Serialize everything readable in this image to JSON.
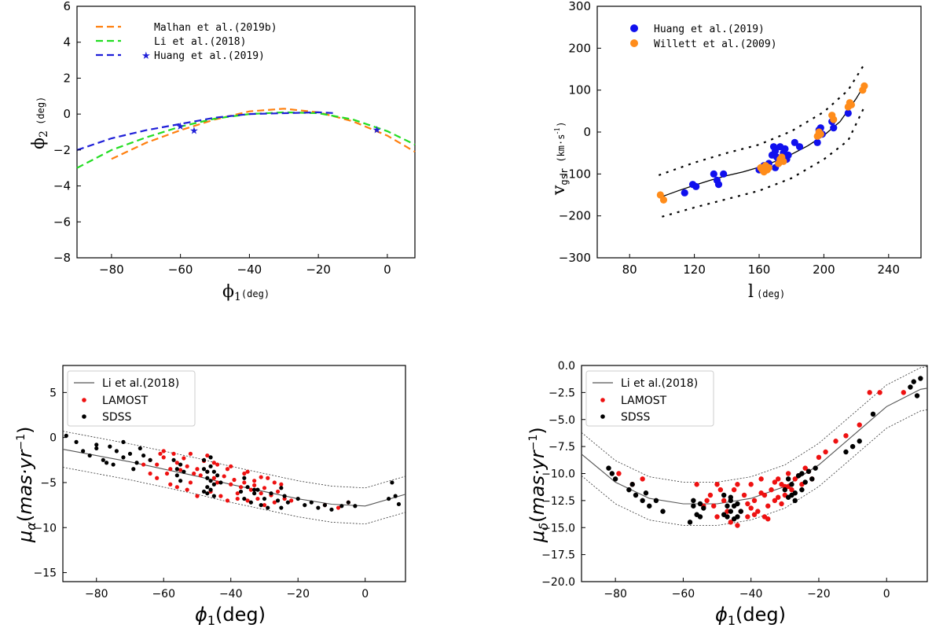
{
  "chart_data": [
    {
      "type": "line",
      "title": "",
      "xlabel": "ϕ1(deg)",
      "ylabel": "ϕ2 (deg)",
      "xlim": [
        -90,
        8
      ],
      "ylim": [
        -8,
        6
      ],
      "xticks": [
        -80,
        -60,
        -40,
        -20,
        0
      ],
      "yticks": [
        -8,
        -6,
        -4,
        -2,
        0,
        2,
        4,
        6
      ],
      "legend": "top-left",
      "series": [
        {
          "name": "Malhan et al.(2019b)",
          "color": "#ff7f0e",
          "style": "dashed",
          "x": [
            -80,
            -70,
            -60,
            -50,
            -40,
            -30,
            -20,
            -10,
            0,
            8
          ],
          "y": [
            -2.5,
            -1.6,
            -0.9,
            -0.3,
            0.15,
            0.3,
            0.1,
            -0.4,
            -1.2,
            -2.1
          ]
        },
        {
          "name": "Li et al.(2018)",
          "color": "#22dd22",
          "style": "dashed",
          "x": [
            -90,
            -80,
            -70,
            -60,
            -50,
            -40,
            -30,
            -20,
            -10,
            0,
            8
          ],
          "y": [
            -3.0,
            -2.0,
            -1.3,
            -0.7,
            -0.25,
            0.0,
            0.1,
            0.05,
            -0.3,
            -0.95,
            -1.7
          ]
        },
        {
          "name": "Huang et al.(2019)",
          "color": "#1f1fd8",
          "style": "dashed",
          "x": [
            -90,
            -80,
            -70,
            -60,
            -50,
            -40,
            -30,
            -20,
            -15
          ],
          "y": [
            -2.0,
            -1.35,
            -0.9,
            -0.55,
            -0.2,
            0.0,
            0.05,
            0.1,
            0.05
          ]
        }
      ],
      "markers": {
        "name": "Huang et al.(2019)",
        "color": "#1f1fd8",
        "symbol": "star",
        "x": [
          -60,
          -56,
          -3
        ],
        "y": [
          -0.65,
          -0.9,
          -0.85
        ]
      }
    },
    {
      "type": "scatter",
      "xlabel": "l (deg)",
      "ylabel": "vgsr (km·s⁻¹)",
      "xlim": [
        60,
        260
      ],
      "ylim": [
        -300,
        300
      ],
      "xticks": [
        80,
        120,
        160,
        200,
        240
      ],
      "yticks": [
        -300,
        -200,
        -100,
        0,
        100,
        200,
        300
      ],
      "legend": "top-left",
      "fit_line": {
        "x": [
          98,
          110,
          120,
          130,
          140,
          150,
          160,
          170,
          180,
          190,
          200,
          210,
          220,
          225
        ],
        "y": [
          -157,
          -140,
          -127,
          -115,
          -104,
          -95,
          -84,
          -70,
          -53,
          -33,
          -8,
          25,
          80,
          112
        ]
      },
      "upper_bound": {
        "x": [
          98,
          120,
          140,
          160,
          180,
          200,
          215,
          225
        ],
        "y": [
          -103,
          -73,
          -50,
          -30,
          2,
          48,
          100,
          162
        ]
      },
      "lower_bound": {
        "x": [
          100,
          120,
          140,
          160,
          180,
          200,
          215,
          225
        ],
        "y": [
          -202,
          -180,
          -160,
          -140,
          -110,
          -65,
          -20,
          60
        ]
      },
      "series": [
        {
          "name": "Huang et al.(2019)",
          "color": "#1010ee",
          "x": [
            114,
            119,
            121,
            132,
            134,
            135,
            138,
            160,
            163,
            166,
            168,
            169,
            170,
            170,
            171,
            172,
            173,
            175,
            176,
            177,
            178,
            182,
            185,
            196,
            197,
            198,
            199,
            205,
            206,
            215
          ],
          "y": [
            -145,
            -125,
            -130,
            -100,
            -115,
            -125,
            -100,
            -90,
            -80,
            -75,
            -55,
            -35,
            -45,
            -85,
            -60,
            -70,
            -35,
            -50,
            -40,
            -65,
            -55,
            -25,
            -35,
            -25,
            5,
            10,
            -5,
            25,
            10,
            45
          ]
        },
        {
          "name": "Willett et al.(2009)",
          "color": "#ff8c1a",
          "x": [
            99,
            101,
            161,
            162,
            163,
            164,
            165,
            166,
            172,
            173,
            174,
            175,
            196,
            197,
            198,
            205,
            206,
            215,
            216,
            217,
            224,
            225
          ],
          "y": [
            -150,
            -162,
            -85,
            -90,
            -95,
            -80,
            -90,
            -85,
            -75,
            -65,
            -60,
            -70,
            -10,
            0,
            -5,
            40,
            30,
            60,
            70,
            65,
            100,
            110
          ]
        }
      ]
    },
    {
      "type": "scatter",
      "xlabel": "ϕ1(deg)",
      "ylabel": "μα(mas·yr⁻¹)",
      "xlim": [
        -90,
        12
      ],
      "ylim": [
        -16,
        8
      ],
      "xticks": [
        -80,
        -60,
        -40,
        -20,
        0
      ],
      "yticks": [
        -15,
        -10,
        -5,
        0,
        5
      ],
      "legend": "top-left",
      "fit_line": {
        "x": [
          -90,
          -80,
          -70,
          -60,
          -50,
          -40,
          -30,
          -20,
          -10,
          0,
          12
        ],
        "y": [
          -1.3,
          -2.0,
          -2.7,
          -3.5,
          -4.3,
          -5.2,
          -6.0,
          -6.8,
          -7.4,
          -7.6,
          -6.3
        ]
      },
      "upper_bound": {
        "x": [
          -90,
          -80,
          -70,
          -60,
          -50,
          -40,
          -30,
          -20,
          -10,
          0,
          12
        ],
        "y": [
          0.7,
          0.0,
          -0.7,
          -1.5,
          -2.3,
          -3.2,
          -4.0,
          -4.8,
          -5.4,
          -5.6,
          -4.3
        ]
      },
      "lower_bound": {
        "x": [
          -90,
          -80,
          -70,
          -60,
          -50,
          -40,
          -30,
          -20,
          -10,
          0,
          12
        ],
        "y": [
          -3.3,
          -4.0,
          -4.7,
          -5.5,
          -6.3,
          -7.2,
          -8.0,
          -8.8,
          -9.4,
          -9.6,
          -8.3
        ]
      },
      "series": [
        {
          "name": "Li et al.(2018)",
          "color": "#555555",
          "kind": "line"
        },
        {
          "name": "LAMOST",
          "color": "#ee1111",
          "x": [
            -64,
            -62,
            -60,
            -58,
            -56,
            -55,
            -53,
            -51,
            -50,
            -49,
            -47,
            -45,
            -44,
            -42,
            -40,
            -39,
            -37,
            -36,
            -34,
            -33,
            -31,
            -30,
            -28,
            -26,
            -24,
            -22,
            -62,
            -59,
            -57,
            -54,
            -52,
            -48,
            -46,
            -43,
            -41,
            -38,
            -35,
            -32,
            -29,
            -27,
            -25,
            -60,
            -56,
            -50,
            -45,
            -40,
            -35,
            -30,
            -12,
            -8,
            -5,
            -66,
            -61,
            -53,
            -47,
            -41,
            -36,
            -33,
            -64,
            -58,
            -52,
            -44,
            -38,
            -31,
            -27
          ],
          "y": [
            -2.5,
            -3.0,
            -2.2,
            -3.5,
            -2.8,
            -3.6,
            -3.2,
            -4.0,
            -3.5,
            -4.2,
            -3.8,
            -4.5,
            -5.0,
            -4.3,
            -5.2,
            -4.7,
            -5.5,
            -5.0,
            -5.8,
            -5.3,
            -6.2,
            -5.6,
            -6.4,
            -6.0,
            -6.8,
            -7.0,
            -4.5,
            -4.0,
            -1.8,
            -2.3,
            -5.0,
            -2.6,
            -6.0,
            -6.5,
            -3.5,
            -6.2,
            -3.8,
            -6.8,
            -4.5,
            -7.2,
            -5.2,
            -1.5,
            -5.5,
            -6.5,
            -2.8,
            -3.2,
            -7.0,
            -7.5,
            -7.5,
            -7.8,
            -7.2,
            -3.0,
            -1.8,
            -5.8,
            -2.0,
            -7.0,
            -4.0,
            -4.8,
            -4.0,
            -5.2,
            -1.8,
            -3.0,
            -6.8,
            -4.4,
            -5.0
          ]
        },
        {
          "name": "SDSS",
          "color": "#000000",
          "x": [
            -89,
            -86,
            -84,
            -82,
            -80,
            -78,
            -76,
            -75,
            -74,
            -72,
            -70,
            -69,
            -68,
            -66,
            -64,
            -57,
            -56,
            -56,
            -55,
            -55,
            -54,
            -48,
            -48,
            -47,
            -47,
            -47,
            -46,
            -46,
            -46,
            -45,
            -45,
            -44,
            -43,
            -37,
            -36,
            -35,
            -34,
            -33,
            -32,
            -31,
            -30,
            -28,
            -26,
            -25,
            -24,
            -23,
            -20,
            -18,
            -16,
            -14,
            -12,
            -10,
            -7,
            -5,
            -3,
            7,
            8,
            9,
            10,
            -80,
            -77,
            -72,
            -67,
            -48,
            -46,
            -47,
            -45,
            -36,
            -33,
            -29,
            -25
          ],
          "y": [
            0.2,
            -0.5,
            -1.5,
            -2.0,
            -0.8,
            -2.5,
            -1.0,
            -3.0,
            -1.5,
            -2.2,
            -1.8,
            -3.5,
            -2.8,
            -2.0,
            -2.5,
            -2.5,
            -3.5,
            -4.2,
            -3.0,
            -4.8,
            -3.8,
            -2.5,
            -3.5,
            -4.5,
            -5.5,
            -6.2,
            -3.2,
            -4.8,
            -5.8,
            -3.8,
            -5.2,
            -4.2,
            -5.0,
            -6.0,
            -6.8,
            -5.5,
            -7.2,
            -6.2,
            -5.8,
            -7.5,
            -6.8,
            -6.2,
            -7.0,
            -7.8,
            -6.5,
            -7.2,
            -6.8,
            -7.5,
            -7.2,
            -7.8,
            -7.5,
            -8.0,
            -7.6,
            -7.2,
            -7.6,
            -6.8,
            -5.0,
            -6.5,
            -7.4,
            -1.2,
            -2.8,
            -0.5,
            -1.2,
            -6.0,
            -2.2,
            -3.8,
            -6.5,
            -4.5,
            -5.8,
            -7.8,
            -5.6
          ]
        }
      ]
    },
    {
      "type": "scatter",
      "xlabel": "ϕ1(deg)",
      "ylabel": "μδ(mas·yr⁻¹)",
      "xlim": [
        -90,
        12
      ],
      "ylim": [
        -20,
        0
      ],
      "xticks": [
        -80,
        -60,
        -40,
        -20,
        0
      ],
      "yticks": [
        -20.0,
        -17.5,
        -15.0,
        -12.5,
        -10.0,
        -7.5,
        -5.0,
        -2.5,
        0.0
      ],
      "legend": "top-left",
      "fit_line": {
        "x": [
          -90,
          -80,
          -70,
          -60,
          -50,
          -40,
          -30,
          -20,
          -10,
          0,
          10,
          12
        ],
        "y": [
          -8.2,
          -10.8,
          -12.3,
          -12.8,
          -12.8,
          -12.3,
          -11.2,
          -9.2,
          -6.5,
          -3.8,
          -2.2,
          -2.1
        ]
      },
      "upper_bound": {
        "x": [
          -90,
          -80,
          -70,
          -60,
          -50,
          -40,
          -30,
          -20,
          -10,
          0,
          10,
          12
        ],
        "y": [
          -6.2,
          -8.8,
          -10.3,
          -10.8,
          -10.8,
          -10.3,
          -9.2,
          -7.2,
          -4.5,
          -1.8,
          -0.2,
          -0.1
        ]
      },
      "lower_bound": {
        "x": [
          -90,
          -80,
          -70,
          -60,
          -50,
          -40,
          -30,
          -20,
          -10,
          0,
          10,
          12
        ],
        "y": [
          -10.2,
          -12.8,
          -14.3,
          -14.8,
          -14.8,
          -14.3,
          -13.2,
          -11.2,
          -8.5,
          -5.8,
          -4.2,
          -4.1
        ]
      },
      "series": [
        {
          "name": "Li et al.(2018)",
          "color": "#555555",
          "kind": "line"
        },
        {
          "name": "LAMOST",
          "color": "#ee1111",
          "x": [
            -79,
            -75,
            -72,
            -56,
            -54,
            -52,
            -50,
            -49,
            -48,
            -46,
            -44,
            -43,
            -42,
            -41,
            -40,
            -39,
            -38,
            -37,
            -36,
            -35,
            -34,
            -33,
            -32,
            -31,
            -30,
            -29,
            -28,
            -27,
            -25,
            -24,
            -22,
            -20,
            -18,
            -15,
            -12,
            -8,
            -5,
            -2,
            5,
            -53,
            -51,
            -47,
            -45,
            -41,
            -39,
            -37,
            -35,
            -33,
            -31,
            -29,
            -50,
            -44,
            -40,
            -36,
            -32,
            -30,
            -26,
            -23
          ],
          "y": [
            -10.0,
            -11.0,
            -10.5,
            -11.0,
            -13.0,
            -12.0,
            -14.0,
            -11.5,
            -12.5,
            -14.5,
            -11.0,
            -13.5,
            -12.0,
            -14.0,
            -11.0,
            -12.5,
            -13.5,
            -10.5,
            -12.0,
            -13.0,
            -11.5,
            -12.5,
            -10.5,
            -11.0,
            -12.0,
            -10.0,
            -11.5,
            -10.5,
            -11.0,
            -9.5,
            -10.5,
            -8.5,
            -8.0,
            -7.0,
            -6.5,
            -5.5,
            -2.5,
            -2.5,
            -2.5,
            -12.5,
            -13.0,
            -13.5,
            -11.5,
            -12.8,
            -13.8,
            -11.8,
            -14.2,
            -10.8,
            -12.8,
            -11.2,
            -11.0,
            -14.8,
            -13.2,
            -14.0,
            -12.2,
            -11.2,
            -10.2,
            -9.8
          ]
        },
        {
          "name": "SDSS",
          "color": "#000000",
          "x": [
            -82,
            -81,
            -80,
            -76,
            -75,
            -74,
            -72,
            -71,
            -70,
            -68,
            -66,
            -58,
            -57,
            -56,
            -55,
            -55,
            -54,
            -48,
            -47,
            -47,
            -46,
            -46,
            -45,
            -45,
            -44,
            -43,
            -30,
            -29,
            -28,
            -28,
            -27,
            -26,
            -25,
            -24,
            -23,
            -22,
            -21,
            -12,
            -10,
            -8,
            -4,
            7,
            8,
            9,
            10,
            -57,
            -48,
            -46,
            -44,
            -29,
            -27,
            -25
          ],
          "y": [
            -9.5,
            -10.0,
            -10.5,
            -11.5,
            -11.0,
            -12.0,
            -12.5,
            -11.8,
            -13.0,
            -12.5,
            -13.5,
            -14.5,
            -12.5,
            -13.8,
            -12.8,
            -14.0,
            -13.2,
            -12.0,
            -13.0,
            -14.0,
            -12.5,
            -13.5,
            -13.0,
            -14.2,
            -12.8,
            -13.5,
            -11.5,
            -10.5,
            -12.0,
            -11.0,
            -12.5,
            -10.2,
            -11.5,
            -10.8,
            -9.8,
            -10.5,
            -9.5,
            -8.0,
            -7.5,
            -7.0,
            -4.5,
            -2.0,
            -1.5,
            -2.8,
            -1.2,
            -13.0,
            -13.8,
            -12.2,
            -14.0,
            -12.2,
            -11.8,
            -10.0
          ]
        }
      ]
    }
  ]
}
